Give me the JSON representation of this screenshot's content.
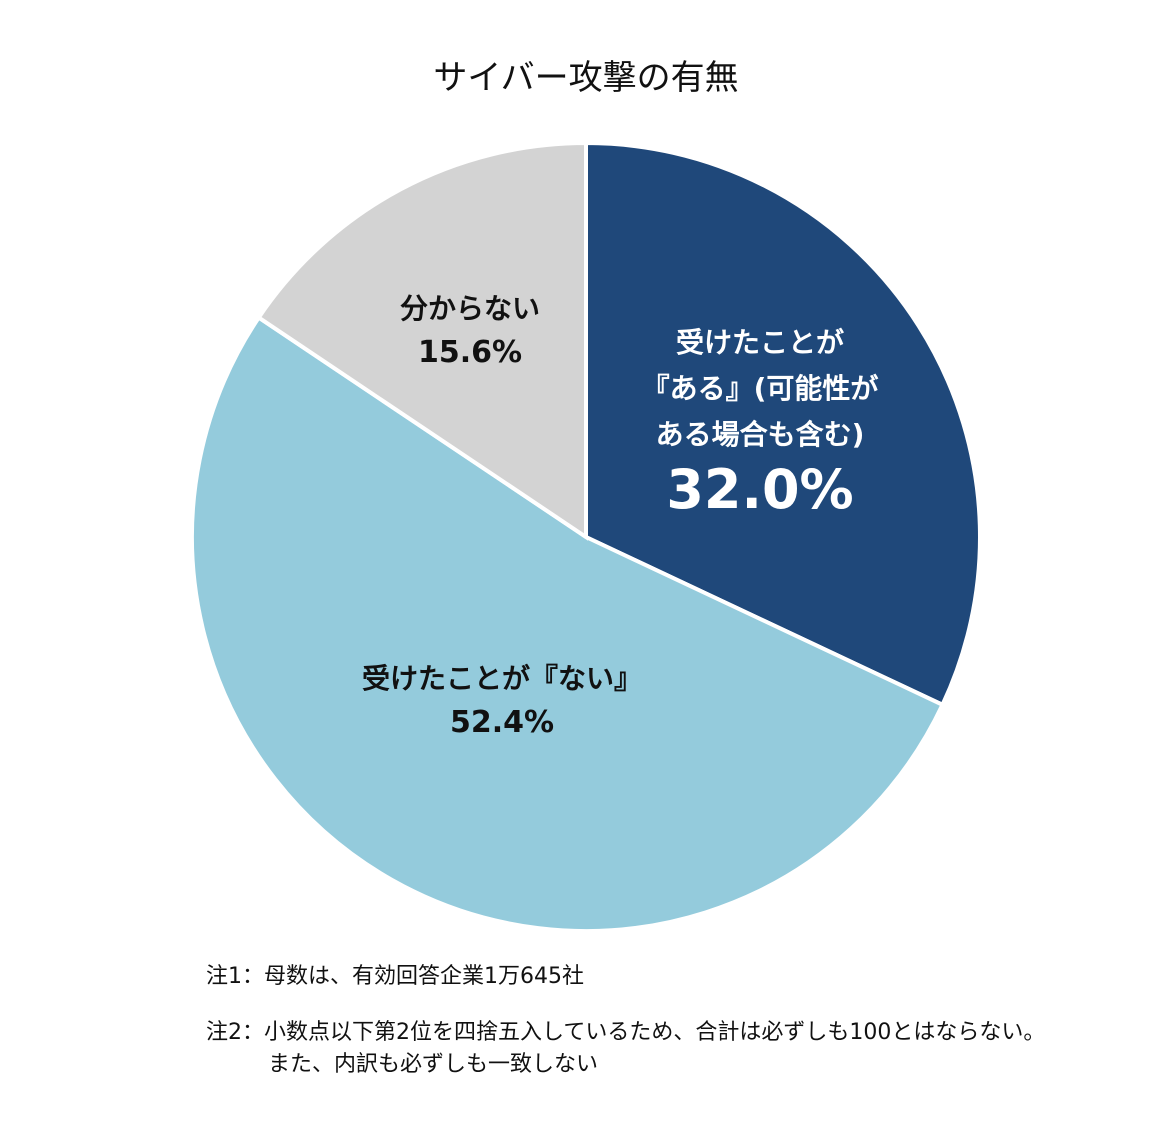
{
  "chart_data": {
    "type": "pie",
    "title": "サイバー攻撃の有無",
    "start_angle": "12 o'clock, clockwise",
    "slices": [
      {
        "label_lines": [
          "受けたことが",
          "『ある』(可能性が",
          "ある場合も含む)"
        ],
        "value": 32.0,
        "value_label": "32.0%",
        "color": "#1f487a",
        "text_color": "#ffffff"
      },
      {
        "label_lines": [
          "受けたことが『ない』"
        ],
        "value": 52.4,
        "value_label": "52.4%",
        "color": "#94cbdc",
        "text_color": "#111111"
      },
      {
        "label_lines": [
          "分からない"
        ],
        "value": 15.6,
        "value_label": "15.6%",
        "color": "#d3d3d3",
        "text_color": "#111111"
      }
    ]
  },
  "notes": {
    "note1": "注1：母数は、有効回答企業1万645社",
    "note2_line1": "注2：小数点以下第2位を四捨五入しているため、合計は必ずしも100とはならない。",
    "note2_line2": "また、内訳も必ずしも一致しない"
  }
}
